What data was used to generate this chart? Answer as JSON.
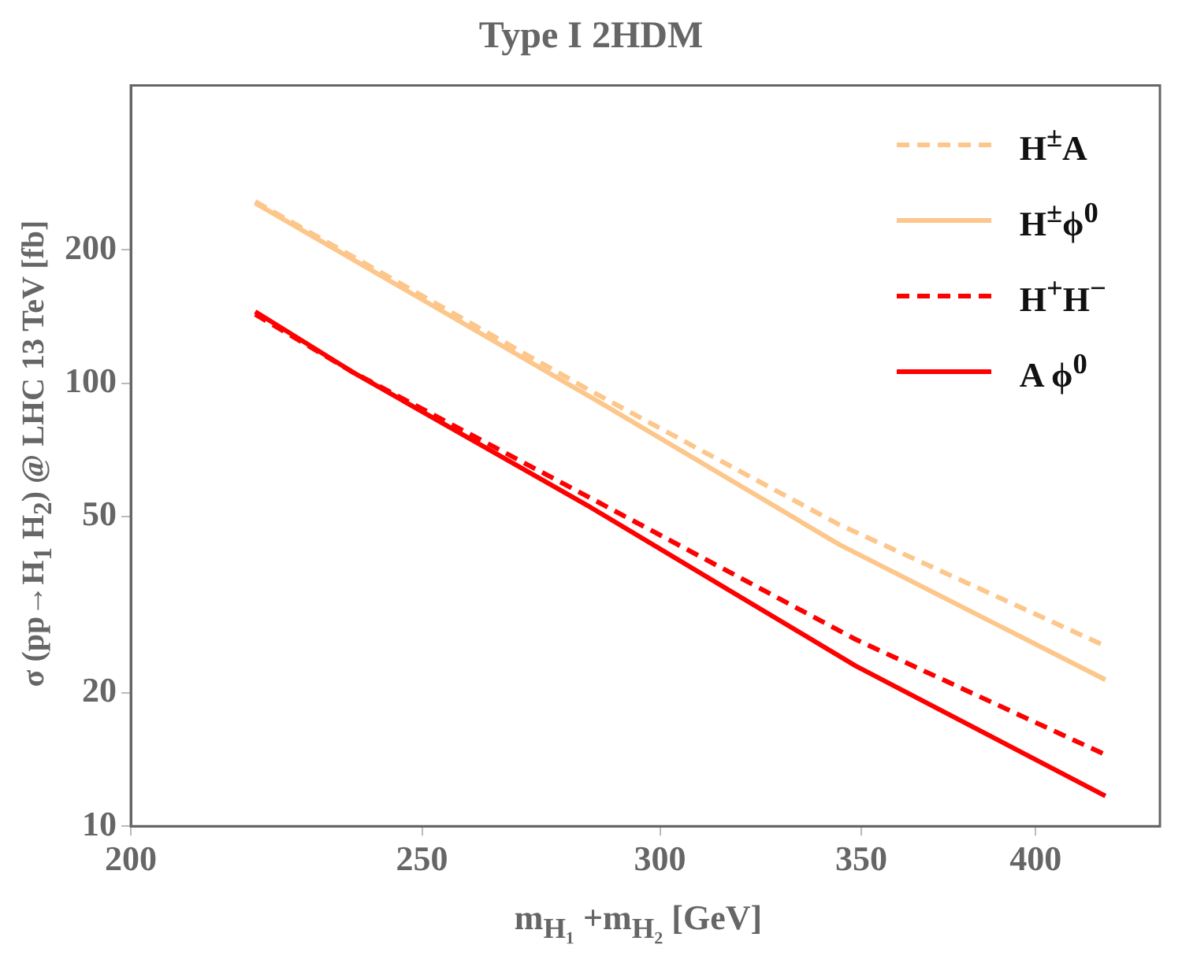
{
  "chart_data": {
    "type": "line",
    "title": "Type I 2HDM",
    "xlabel": "m$_{H₁}$ +m$_{H₂}$ [GeV]",
    "ylabel": "σ (pp→H$_{1}$ H$_{2}$) @ LHC 13 TeV [fb]",
    "log": "xy",
    "xlim": [
      200,
      440
    ],
    "xticks": [
      200,
      250,
      300,
      350,
      400
    ],
    "ylim": [
      10,
      470
    ],
    "yticks": [
      10,
      20,
      50,
      100,
      200
    ],
    "grid": false,
    "legend": "top right",
    "marker": "none",
    "series": [
      {
        "name": "H$^{±}$A",
        "color": "#fdc68b",
        "line_style": "dashed",
        "x": [
          220,
          284.5,
          344,
          422
        ],
        "values": [
          257,
          96,
          48,
          25.5
        ]
      },
      {
        "name": "H$^{±}$ϕ$^{0}$",
        "color": "#fdc68b",
        "line_style": "solid",
        "x": [
          220,
          284.5,
          344,
          422
        ],
        "values": [
          255,
          93,
          43.3,
          21.4
        ]
      },
      {
        "name": "H$^{+}$H$^{−}$",
        "color": "#ff0000",
        "line_style": "dashed",
        "x": [
          220,
          237,
          284.5,
          348.5,
          422
        ],
        "values": [
          143,
          106,
          55,
          26.4,
          14.5
        ]
      },
      {
        "name": "A ϕ$^{0}$",
        "color": "#ff0000",
        "line_style": "solid",
        "x": [
          220,
          237,
          284.5,
          348.5,
          422
        ],
        "values": [
          145,
          106,
          52.4,
          23,
          11.7
        ]
      }
    ]
  }
}
